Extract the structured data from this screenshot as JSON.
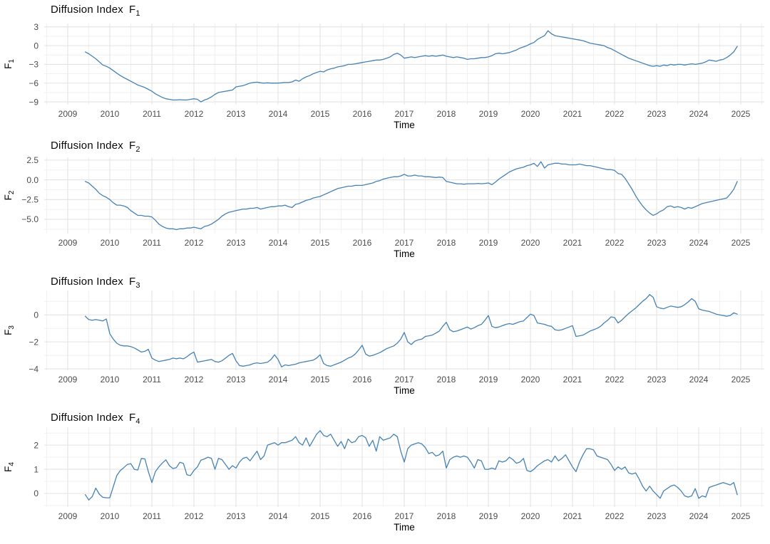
{
  "colors": {
    "line": "#4682B4",
    "grid_major": "#e3e3e3",
    "grid_minor": "#efefef",
    "tick_text": "#4d4d4d",
    "title_text": "#0a0a0a",
    "background": "#ffffff"
  },
  "chart_data": [
    {
      "type": "line",
      "title_text": "Diffusion Index",
      "symbol": "F",
      "subscript": "1",
      "x_label": "Time",
      "x_ticks": [
        2009,
        2010,
        2011,
        2012,
        2013,
        2014,
        2015,
        2016,
        2017,
        2018,
        2019,
        2020,
        2021,
        2022,
        2023,
        2024,
        2025
      ],
      "y_ticks": [
        3,
        0,
        -3,
        -6,
        -9
      ],
      "y_tick_labels": [
        "3",
        "0",
        "−3",
        "−6",
        "−9"
      ],
      "y_minor_ticks": [
        1.5,
        -1.5,
        -4.5,
        -7.5
      ],
      "y_domain": [
        -9.45,
        3.55
      ],
      "x_domain": [
        2008.44,
        2025.56
      ],
      "x_start": 2009.4167,
      "x_step": 0.083333,
      "values": [
        -1.0,
        -1.3,
        -1.7,
        -2.1,
        -2.6,
        -3.1,
        -3.3,
        -3.6,
        -4.0,
        -4.4,
        -4.8,
        -5.1,
        -5.4,
        -5.7,
        -6.0,
        -6.3,
        -6.5,
        -6.7,
        -7.0,
        -7.3,
        -7.7,
        -8.0,
        -8.3,
        -8.5,
        -8.6,
        -8.7,
        -8.7,
        -8.65,
        -8.7,
        -8.7,
        -8.6,
        -8.5,
        -8.6,
        -9.0,
        -8.7,
        -8.5,
        -8.2,
        -7.8,
        -7.5,
        -7.4,
        -7.3,
        -7.2,
        -7.1,
        -6.6,
        -6.5,
        -6.4,
        -6.2,
        -6.0,
        -5.9,
        -5.85,
        -5.95,
        -6.0,
        -5.95,
        -6.0,
        -6.0,
        -6.0,
        -5.95,
        -5.9,
        -5.9,
        -5.8,
        -5.5,
        -5.7,
        -5.3,
        -5.0,
        -4.8,
        -4.5,
        -4.3,
        -4.1,
        -4.2,
        -3.9,
        -3.7,
        -3.6,
        -3.4,
        -3.3,
        -3.2,
        -3.0,
        -3.0,
        -2.9,
        -2.8,
        -2.7,
        -2.6,
        -2.5,
        -2.4,
        -2.3,
        -2.3,
        -2.2,
        -2.0,
        -1.8,
        -1.4,
        -1.2,
        -1.5,
        -2.0,
        -1.9,
        -1.8,
        -1.9,
        -1.8,
        -1.7,
        -1.6,
        -1.7,
        -1.6,
        -1.7,
        -1.6,
        -1.5,
        -1.7,
        -1.8,
        -1.9,
        -1.8,
        -1.9,
        -2.0,
        -2.2,
        -2.1,
        -2.1,
        -2.0,
        -1.9,
        -1.9,
        -1.8,
        -1.6,
        -1.3,
        -1.2,
        -1.3,
        -1.2,
        -1.1,
        -0.9,
        -0.7,
        -0.4,
        -0.2,
        0.0,
        0.3,
        0.5,
        1.0,
        1.3,
        1.6,
        2.4,
        1.9,
        1.6,
        1.5,
        1.4,
        1.3,
        1.2,
        1.1,
        1.0,
        0.9,
        0.8,
        0.6,
        0.4,
        0.3,
        0.2,
        0.1,
        0.0,
        -0.3,
        -0.5,
        -0.8,
        -1.1,
        -1.4,
        -1.7,
        -2.0,
        -2.2,
        -2.4,
        -2.6,
        -2.8,
        -3.0,
        -3.2,
        -3.3,
        -3.2,
        -3.3,
        -3.1,
        -3.2,
        -3.0,
        -3.1,
        -3.0,
        -3.0,
        -3.1,
        -3.0,
        -2.9,
        -3.0,
        -2.9,
        -2.8,
        -2.6,
        -2.3,
        -2.4,
        -2.5,
        -2.3,
        -2.2,
        -1.9,
        -1.5,
        -1.0,
        -0.1
      ]
    },
    {
      "type": "line",
      "title_text": "Diffusion Index",
      "symbol": "F",
      "subscript": "2",
      "x_label": "Time",
      "x_ticks": [
        2009,
        2010,
        2011,
        2012,
        2013,
        2014,
        2015,
        2016,
        2017,
        2018,
        2019,
        2020,
        2021,
        2022,
        2023,
        2024,
        2025
      ],
      "y_ticks": [
        2.5,
        0,
        -2.5,
        -5
      ],
      "y_tick_labels": [
        "2.5",
        "0.0",
        "−2.5",
        "−5.0"
      ],
      "y_minor_ticks": [
        1.25,
        -1.25,
        -3.75,
        -6.25
      ],
      "y_domain": [
        -6.8,
        2.85
      ],
      "x_domain": [
        2008.44,
        2025.56
      ],
      "x_start": 2009.4167,
      "x_step": 0.083333,
      "values": [
        -0.2,
        -0.4,
        -0.8,
        -1.2,
        -1.7,
        -2.0,
        -2.2,
        -2.5,
        -2.9,
        -3.2,
        -3.2,
        -3.3,
        -3.5,
        -3.9,
        -4.2,
        -4.5,
        -4.5,
        -4.6,
        -4.6,
        -4.7,
        -5.1,
        -5.6,
        -5.9,
        -6.1,
        -6.2,
        -6.2,
        -6.3,
        -6.2,
        -6.2,
        -6.1,
        -6.1,
        -6.0,
        -6.1,
        -6.2,
        -5.9,
        -5.8,
        -5.6,
        -5.3,
        -5.0,
        -4.6,
        -4.3,
        -4.1,
        -4.0,
        -3.9,
        -3.8,
        -3.7,
        -3.7,
        -3.6,
        -3.6,
        -3.5,
        -3.7,
        -3.6,
        -3.5,
        -3.4,
        -3.4,
        -3.3,
        -3.3,
        -3.2,
        -3.4,
        -3.5,
        -3.1,
        -3.0,
        -2.8,
        -2.6,
        -2.5,
        -2.3,
        -2.2,
        -2.1,
        -1.9,
        -1.7,
        -1.5,
        -1.3,
        -1.1,
        -1.0,
        -0.9,
        -0.8,
        -0.8,
        -0.7,
        -0.7,
        -0.7,
        -0.6,
        -0.5,
        -0.4,
        -0.2,
        -0.1,
        0.1,
        0.2,
        0.3,
        0.4,
        0.4,
        0.5,
        0.7,
        0.5,
        0.5,
        0.6,
        0.5,
        0.5,
        0.4,
        0.4,
        0.35,
        0.3,
        0.35,
        0.3,
        -0.2,
        -0.3,
        -0.4,
        -0.5,
        -0.5,
        -0.55,
        -0.5,
        -0.5,
        -0.5,
        -0.45,
        -0.5,
        -0.45,
        -0.4,
        -0.6,
        -0.3,
        0.1,
        0.4,
        0.7,
        1.0,
        1.2,
        1.4,
        1.5,
        1.6,
        1.8,
        1.9,
        2.1,
        1.7,
        2.3,
        1.5,
        1.9,
        2.0,
        2.1,
        2.1,
        2.0,
        2.0,
        1.9,
        1.9,
        1.9,
        2.0,
        1.9,
        1.8,
        1.8,
        1.7,
        1.6,
        1.5,
        1.4,
        1.3,
        1.3,
        1.2,
        0.8,
        0.7,
        0.2,
        -0.5,
        -1.2,
        -2.0,
        -2.7,
        -3.3,
        -3.8,
        -4.2,
        -4.5,
        -4.3,
        -4.0,
        -3.8,
        -3.4,
        -3.3,
        -3.5,
        -3.4,
        -3.5,
        -3.7,
        -3.5,
        -3.6,
        -3.4,
        -3.2,
        -3.0,
        -2.9,
        -2.8,
        -2.7,
        -2.6,
        -2.5,
        -2.4,
        -2.3,
        -1.8,
        -1.2,
        -0.2
      ]
    },
    {
      "type": "line",
      "title_text": "Diffusion Index",
      "symbol": "F",
      "subscript": "3",
      "x_label": "Time",
      "x_ticks": [
        2009,
        2010,
        2011,
        2012,
        2013,
        2014,
        2015,
        2016,
        2017,
        2018,
        2019,
        2020,
        2021,
        2022,
        2023,
        2024,
        2025
      ],
      "y_ticks": [
        0,
        -2,
        -4
      ],
      "y_tick_labels": [
        "0",
        "−2",
        "−4"
      ],
      "y_minor_ticks": [
        1,
        -1,
        -3
      ],
      "y_domain": [
        -4.1,
        1.8
      ],
      "x_domain": [
        2008.44,
        2025.56
      ],
      "x_start": 2009.4167,
      "x_step": 0.083333,
      "values": [
        -0.1,
        -0.35,
        -0.4,
        -0.35,
        -0.4,
        -0.45,
        -0.3,
        -1.4,
        -1.8,
        -2.1,
        -2.25,
        -2.3,
        -2.3,
        -2.35,
        -2.45,
        -2.6,
        -2.75,
        -2.7,
        -2.55,
        -3.2,
        -3.35,
        -3.45,
        -3.4,
        -3.35,
        -3.3,
        -3.2,
        -3.25,
        -3.2,
        -3.25,
        -3.1,
        -2.9,
        -2.75,
        -3.5,
        -3.45,
        -3.4,
        -3.35,
        -3.3,
        -3.45,
        -3.5,
        -3.4,
        -3.2,
        -3.0,
        -2.85,
        -3.4,
        -3.75,
        -3.8,
        -3.75,
        -3.7,
        -3.6,
        -3.55,
        -3.6,
        -3.55,
        -3.5,
        -3.3,
        -2.95,
        -3.3,
        -3.85,
        -3.7,
        -3.75,
        -3.7,
        -3.65,
        -3.55,
        -3.5,
        -3.45,
        -3.4,
        -3.35,
        -3.2,
        -2.95,
        -3.6,
        -3.75,
        -3.8,
        -3.7,
        -3.6,
        -3.5,
        -3.35,
        -3.2,
        -3.1,
        -2.9,
        -2.6,
        -2.25,
        -2.9,
        -3.05,
        -3.0,
        -2.9,
        -2.8,
        -2.65,
        -2.5,
        -2.4,
        -2.3,
        -2.1,
        -1.8,
        -1.3,
        -2.0,
        -2.2,
        -1.95,
        -1.85,
        -1.8,
        -1.6,
        -1.55,
        -1.5,
        -1.35,
        -1.2,
        -0.85,
        -0.55,
        -1.1,
        -1.25,
        -1.2,
        -1.1,
        -1.0,
        -0.9,
        -1.05,
        -0.95,
        -0.8,
        -0.7,
        -0.4,
        -0.05,
        -0.85,
        -0.95,
        -0.9,
        -0.8,
        -0.7,
        -0.65,
        -0.7,
        -0.6,
        -0.5,
        -0.45,
        -0.2,
        0.05,
        -0.05,
        -0.6,
        -0.65,
        -0.7,
        -0.8,
        -0.85,
        -1.1,
        -1.15,
        -1.1,
        -1.0,
        -0.9,
        -0.8,
        -1.6,
        -1.55,
        -1.5,
        -1.35,
        -1.2,
        -1.1,
        -1.0,
        -0.85,
        -0.6,
        -0.4,
        -0.15,
        -0.2,
        -0.6,
        -0.4,
        -0.15,
        0.1,
        0.3,
        0.5,
        0.75,
        1.0,
        1.2,
        1.5,
        1.3,
        0.6,
        0.5,
        0.45,
        0.55,
        0.65,
        0.6,
        0.55,
        0.6,
        0.75,
        0.95,
        1.2,
        1.0,
        0.45,
        0.35,
        0.3,
        0.25,
        0.15,
        0.05,
        0.0,
        -0.05,
        -0.1,
        -0.05,
        0.15,
        0.05
      ]
    },
    {
      "type": "line",
      "title_text": "Diffusion Index",
      "symbol": "F",
      "subscript": "4",
      "x_label": "Time",
      "x_ticks": [
        2009,
        2010,
        2011,
        2012,
        2013,
        2014,
        2015,
        2016,
        2017,
        2018,
        2019,
        2020,
        2021,
        2022,
        2023,
        2024,
        2025
      ],
      "y_ticks": [
        2,
        1,
        0
      ],
      "y_tick_labels": [
        "2",
        "1",
        "0"
      ],
      "y_minor_ticks": [
        2.5,
        1.5,
        0.5,
        -0.5
      ],
      "y_domain": [
        -0.56,
        2.74
      ],
      "x_domain": [
        2008.44,
        2025.56
      ],
      "x_start": 2009.4167,
      "x_step": 0.083333,
      "values": [
        -0.05,
        -0.27,
        -0.13,
        0.22,
        -0.03,
        -0.16,
        -0.18,
        -0.18,
        0.28,
        0.74,
        0.95,
        1.07,
        1.2,
        1.23,
        1.0,
        0.97,
        1.45,
        1.43,
        0.9,
        0.45,
        0.9,
        1.1,
        1.26,
        1.39,
        1.15,
        1.03,
        1.07,
        1.29,
        1.24,
        0.77,
        0.74,
        0.95,
        1.1,
        1.38,
        1.43,
        1.5,
        1.45,
        1.0,
        1.45,
        1.4,
        1.2,
        1.0,
        1.15,
        1.05,
        1.3,
        1.45,
        1.5,
        1.35,
        1.55,
        1.75,
        1.4,
        1.55,
        2.0,
        2.05,
        2.1,
        2.0,
        2.1,
        2.1,
        2.15,
        2.2,
        2.35,
        2.1,
        2.0,
        2.3,
        1.95,
        2.2,
        2.45,
        2.6,
        2.4,
        2.35,
        2.45,
        2.2,
        1.95,
        2.15,
        1.85,
        2.25,
        2.1,
        2.15,
        2.35,
        2.4,
        2.3,
        1.95,
        2.2,
        1.75,
        2.35,
        2.2,
        2.25,
        2.3,
        2.45,
        2.35,
        1.75,
        1.3,
        1.85,
        2.0,
        2.05,
        2.1,
        2.05,
        1.9,
        1.65,
        1.7,
        1.55,
        1.6,
        1.75,
        1.05,
        1.4,
        1.5,
        1.55,
        1.5,
        1.55,
        1.5,
        1.3,
        1.05,
        1.4,
        1.35,
        1.0,
        1.0,
        1.05,
        1.0,
        1.35,
        1.3,
        1.35,
        1.5,
        1.4,
        1.25,
        1.3,
        1.45,
        0.95,
        0.9,
        1.0,
        1.15,
        1.25,
        1.35,
        1.4,
        1.3,
        1.55,
        1.35,
        1.45,
        1.6,
        1.35,
        1.1,
        0.9,
        1.3,
        1.6,
        1.85,
        1.85,
        1.8,
        1.55,
        1.5,
        1.45,
        1.4,
        1.2,
        0.95,
        1.1,
        1.0,
        1.1,
        0.85,
        0.8,
        0.85,
        0.6,
        0.3,
        0.1,
        0.3,
        0.1,
        -0.05,
        -0.2,
        0.1,
        0.2,
        0.3,
        0.35,
        0.25,
        0.1,
        -0.1,
        -0.15,
        -0.1,
        0.2,
        -0.2,
        -0.1,
        -0.15,
        0.25,
        0.3,
        0.35,
        0.4,
        0.45,
        0.4,
        0.35,
        0.45,
        -0.05
      ]
    }
  ]
}
